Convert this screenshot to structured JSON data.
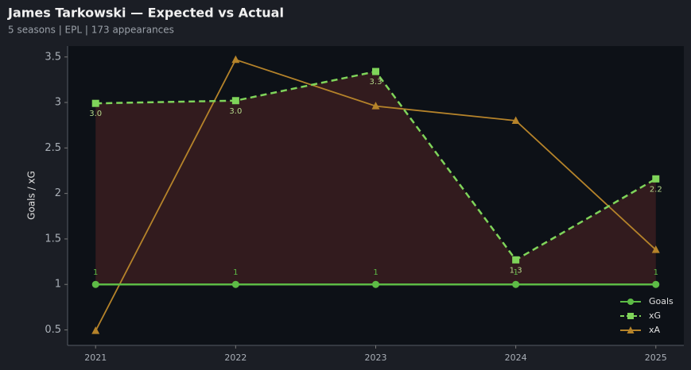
{
  "title": "James Tarkowski — Expected vs Actual",
  "subtitle": "5 seasons | EPL | 173 appearances",
  "chart_data": {
    "type": "line",
    "ylabel": "Goals / xG",
    "x": [
      2021,
      2022,
      2023,
      2024,
      2025
    ],
    "xlim": [
      2020.8,
      2025.2
    ],
    "xticks": [
      2021,
      2022,
      2023,
      2024,
      2025
    ],
    "ylim": [
      0.33,
      3.62
    ],
    "yticks": [
      0.5,
      1.0,
      1.5,
      2.0,
      2.5,
      3.0,
      3.5
    ],
    "legend": "lower-right",
    "fill_between": "#3a1d20",
    "series": [
      {
        "name": "Goals",
        "color": "#5dbb46",
        "marker": "circle",
        "dash": false,
        "values": [
          1,
          1,
          1,
          1,
          1
        ],
        "value_labels": [
          "1",
          "1",
          "1",
          "1",
          "1"
        ]
      },
      {
        "name": "xG",
        "color": "#7fd45a",
        "marker": "square",
        "dash": true,
        "values": [
          2.99,
          3.02,
          3.34,
          1.27,
          2.16
        ],
        "value_labels": [
          "3.0",
          "3.0",
          "3.3",
          "1.3",
          "2.2"
        ]
      },
      {
        "name": "xA",
        "color": "#b5832a",
        "marker": "triangle",
        "dash": false,
        "values": [
          0.49,
          3.47,
          2.96,
          2.8,
          1.38
        ]
      }
    ]
  }
}
